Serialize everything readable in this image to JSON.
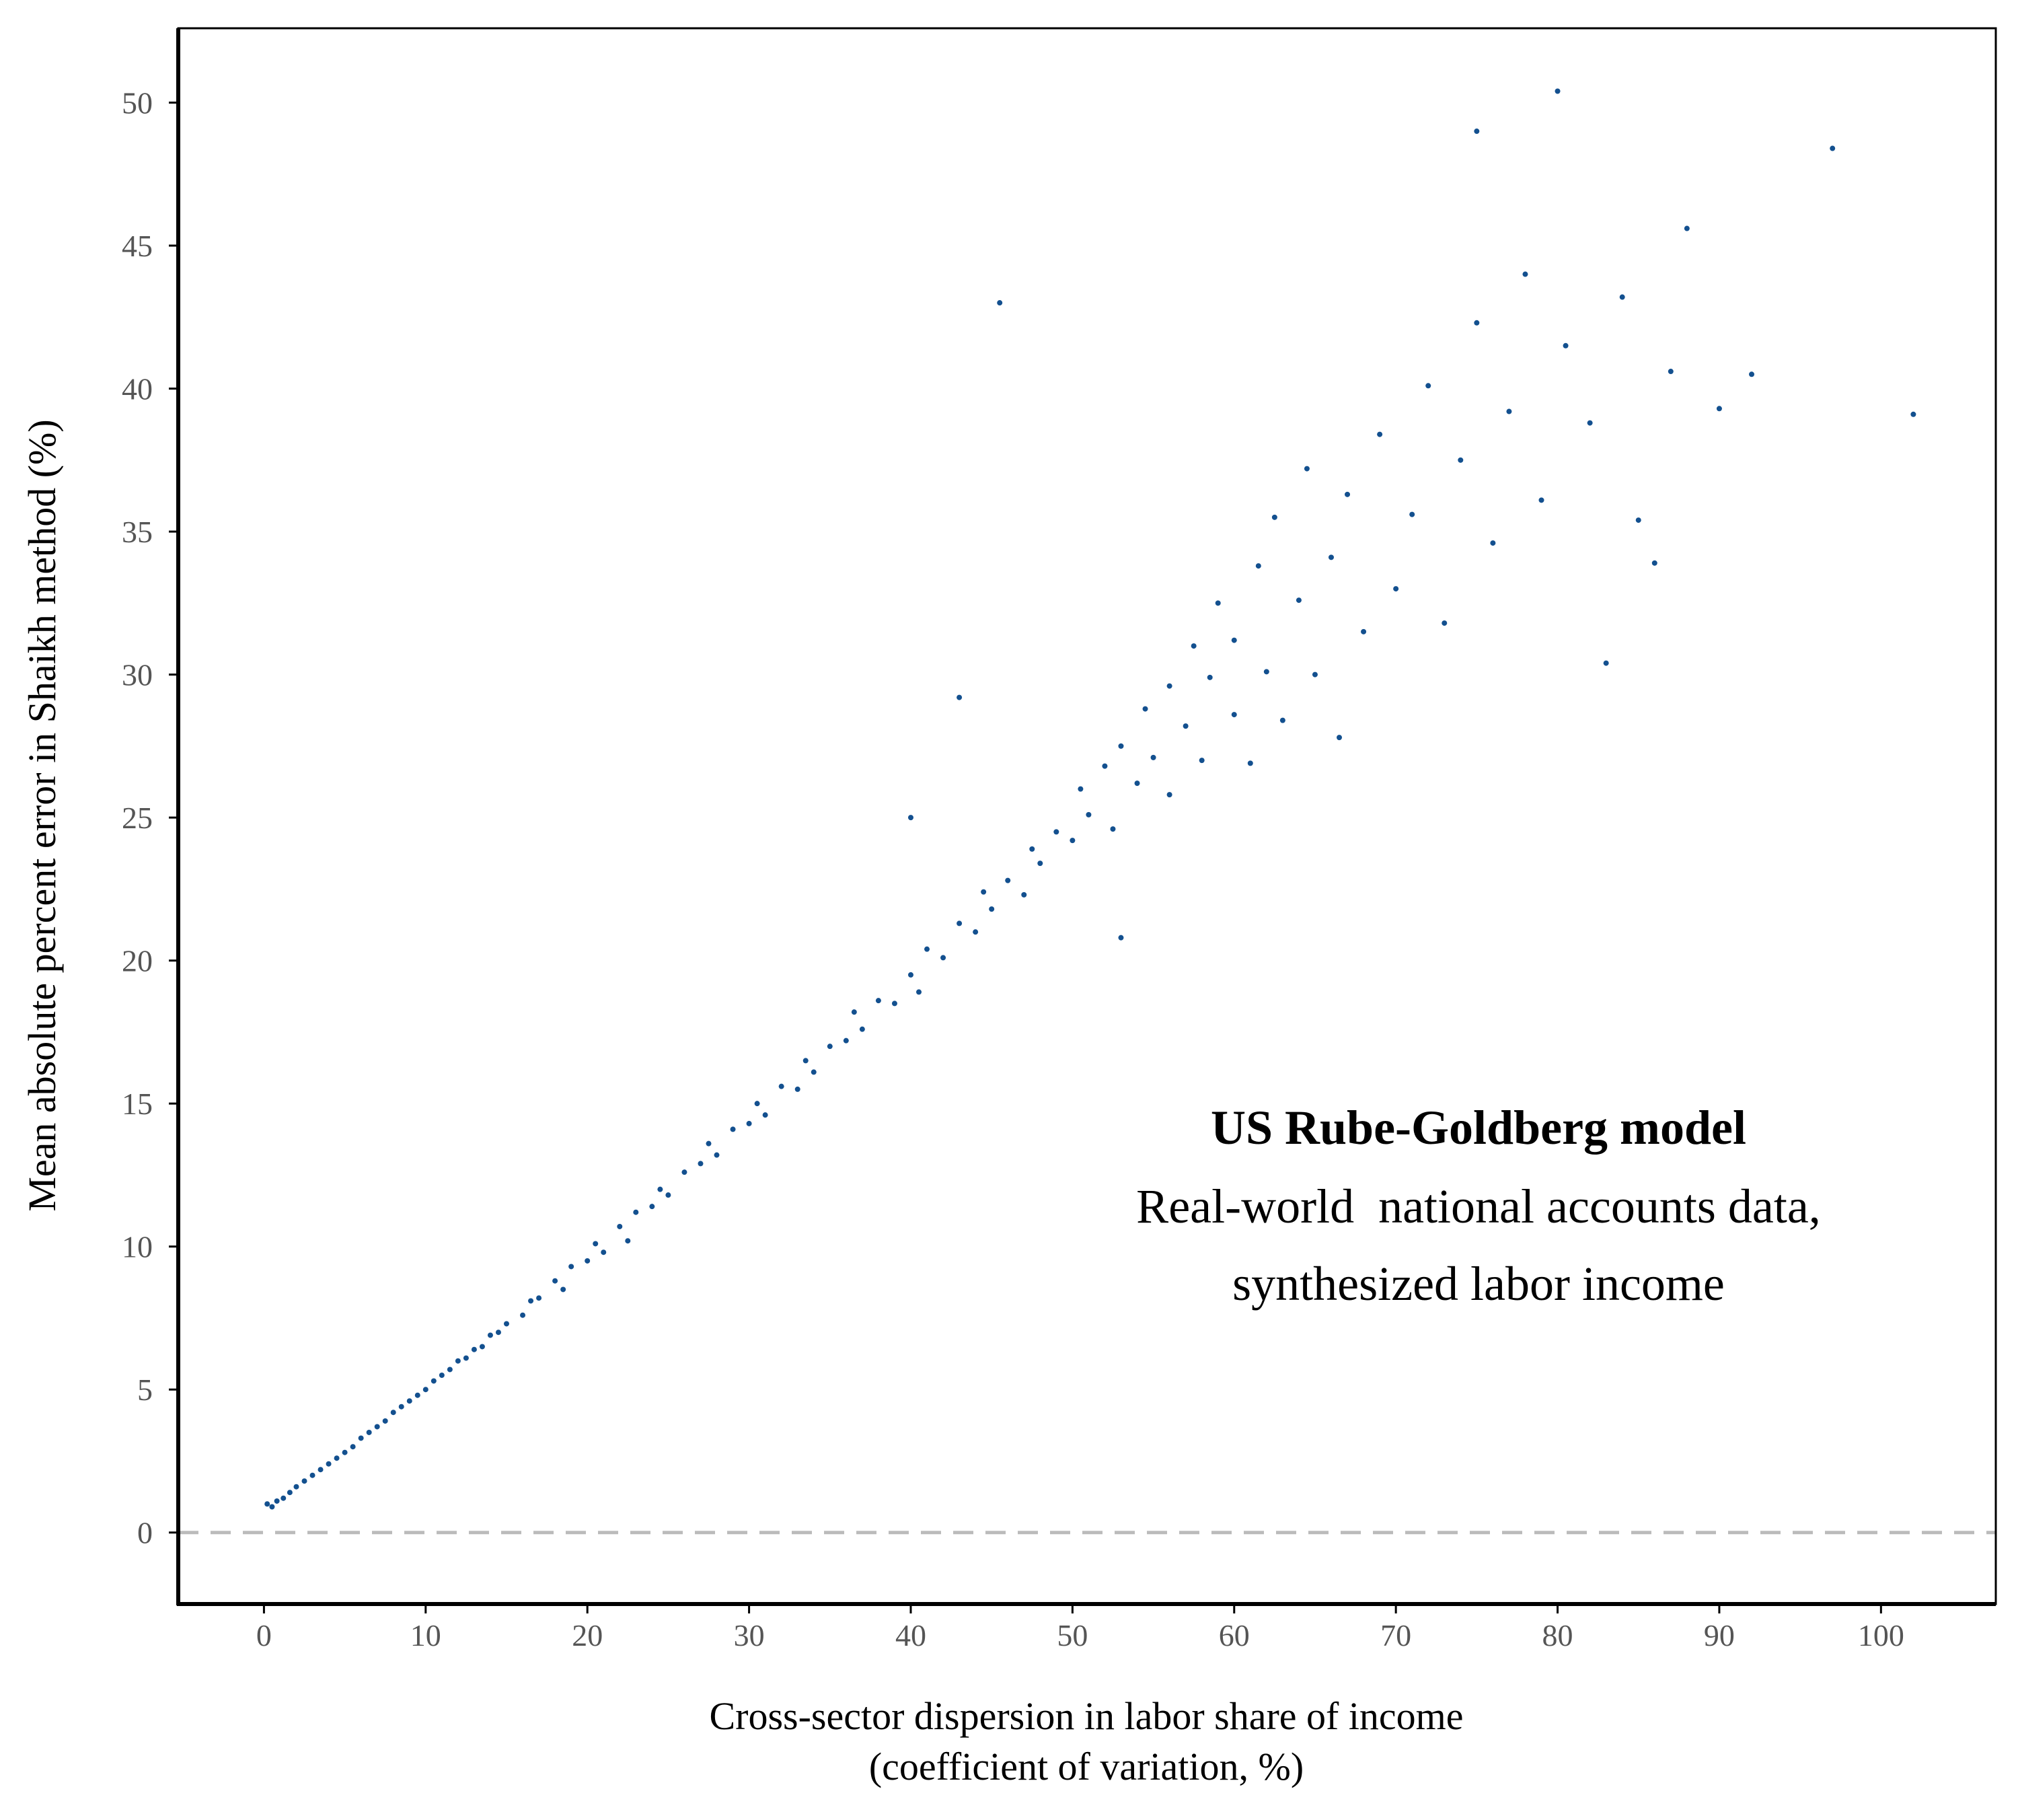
{
  "chart_data": {
    "type": "scatter",
    "x_label": [
      "Cross-sector dispersion in labor share of income",
      "(coefficient of variation, %)"
    ],
    "y_label": "Mean absolute percent error in Shaikh method (%)",
    "annotations": [
      "US Rube-Goldberg model",
      "Real-world  national accounts data,",
      "synthesized labor income"
    ],
    "xlim": [
      -5.3,
      107.1
    ],
    "ylim": [
      -2.5,
      52.6
    ],
    "xticks": [
      0,
      10,
      20,
      30,
      40,
      50,
      60,
      70,
      80,
      90,
      100
    ],
    "yticks": [
      0,
      5,
      10,
      15,
      20,
      25,
      30,
      35,
      40,
      45,
      50
    ],
    "grid": false,
    "reference_line": {
      "y": 0,
      "color": "#bbbbbb",
      "style": "dashed"
    },
    "series": [
      {
        "color": "#13508f",
        "x": [
          0.2,
          0.5,
          0.8,
          1.2,
          1.6,
          2,
          2.5,
          3,
          3.5,
          4,
          4.5,
          5,
          5.5,
          6,
          6.5,
          7,
          7.5,
          8,
          8.5,
          9,
          9.5,
          10,
          10.5,
          11,
          11.5,
          12,
          12.5,
          13,
          13.5,
          14,
          14.5,
          15,
          16,
          16.5,
          17,
          18,
          18.5,
          19,
          20,
          20.5,
          21,
          22,
          22.5,
          23,
          24,
          24.5,
          25,
          26,
          27,
          27.5,
          28,
          29,
          30,
          30.5,
          31,
          32,
          33,
          33.5,
          34,
          35,
          36,
          36.5,
          37,
          38,
          39,
          40,
          40.5,
          41,
          42,
          43,
          44,
          44.5,
          45,
          46,
          47,
          47.5,
          48,
          49,
          50,
          50.5,
          51,
          52,
          52.5,
          53,
          54,
          54.5,
          55,
          56,
          56,
          57,
          57.5,
          58,
          58.5,
          59,
          60,
          60,
          61,
          61.5,
          62,
          62.5,
          63,
          64,
          64.5,
          65,
          66,
          66.5,
          67,
          68,
          69,
          70,
          71,
          72,
          73,
          74,
          75,
          76,
          77,
          78,
          79,
          80,
          80.5,
          82,
          84,
          85,
          87,
          88,
          90,
          92,
          97,
          102,
          75,
          86,
          83,
          53,
          43,
          40,
          45.5
        ],
        "y": [
          1.0,
          0.9,
          1.1,
          1.2,
          1.4,
          1.6,
          1.8,
          2.0,
          2.2,
          2.4,
          2.6,
          2.8,
          3.0,
          3.3,
          3.5,
          3.7,
          3.9,
          4.2,
          4.4,
          4.6,
          4.8,
          5.0,
          5.3,
          5.5,
          5.7,
          6.0,
          6.1,
          6.4,
          6.5,
          6.9,
          7.0,
          7.3,
          7.6,
          8.1,
          8.2,
          8.8,
          8.5,
          9.3,
          9.5,
          10.1,
          9.8,
          10.7,
          10.2,
          11.2,
          11.4,
          12.0,
          11.8,
          12.6,
          12.9,
          13.6,
          13.2,
          14.1,
          14.3,
          15.0,
          14.6,
          15.6,
          15.5,
          16.5,
          16.1,
          17.0,
          17.2,
          18.2,
          17.6,
          18.6,
          18.5,
          19.5,
          18.9,
          20.4,
          20.1,
          21.3,
          21.0,
          22.4,
          21.8,
          22.8,
          22.3,
          23.9,
          23.4,
          24.5,
          24.2,
          26.0,
          25.1,
          26.8,
          24.6,
          27.5,
          26.2,
          28.8,
          27.1,
          29.6,
          25.8,
          28.2,
          31.0,
          27.0,
          29.9,
          32.5,
          28.6,
          31.2,
          26.9,
          33.8,
          30.1,
          35.5,
          28.4,
          32.6,
          37.2,
          30.0,
          34.1,
          27.8,
          36.3,
          31.5,
          38.4,
          33.0,
          35.6,
          40.1,
          31.8,
          37.5,
          42.3,
          34.6,
          39.2,
          44.0,
          36.1,
          50.4,
          41.5,
          38.8,
          43.2,
          35.4,
          40.6,
          45.6,
          39.3,
          40.5,
          48.4,
          39.1,
          49.0,
          33.9,
          30.4,
          20.8,
          29.2,
          25,
          43
        ]
      }
    ]
  }
}
